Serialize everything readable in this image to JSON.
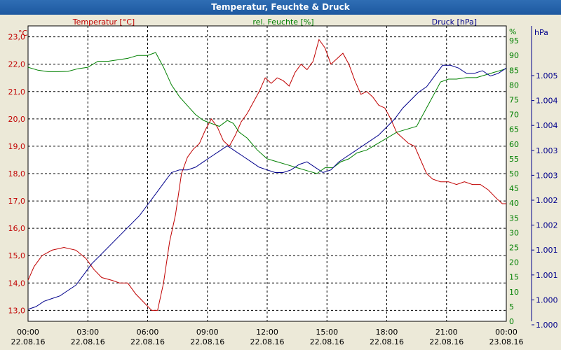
{
  "window": {
    "title": "Temperatur, Feuchte & Druck"
  },
  "chart_data": {
    "type": "line",
    "title": "Temperatur, Feuchte & Druck",
    "x_ticks": [
      {
        "time": "00:00",
        "date": "22.08.16"
      },
      {
        "time": "03:00",
        "date": "22.08.16"
      },
      {
        "time": "06:00",
        "date": "22.08.16"
      },
      {
        "time": "09:00",
        "date": "22.08.16"
      },
      {
        "time": "12:00",
        "date": "22.08.16"
      },
      {
        "time": "15:00",
        "date": "22.08.16"
      },
      {
        "time": "18:00",
        "date": "22.08.16"
      },
      {
        "time": "21:00",
        "date": "22.08.16"
      },
      {
        "time": "00:00",
        "date": "23.08.16"
      }
    ],
    "xlim_hours": [
      0,
      24
    ],
    "axes": {
      "temperature": {
        "unit": "°C",
        "label": "Temperatur [°C]",
        "ylim": [
          12.6,
          23.4
        ],
        "ticks": [
          "13,0",
          "14,0",
          "15,0",
          "16,0",
          "17,0",
          "18,0",
          "19,0",
          "20,0",
          "21,0",
          "22,0",
          "23,0"
        ],
        "tick_values": [
          13,
          14,
          15,
          16,
          17,
          18,
          19,
          20,
          21,
          22,
          23
        ],
        "color": "#c00000"
      },
      "humidity": {
        "unit": "%",
        "label": "rel. Feuchte [%]",
        "ylim": [
          0,
          100
        ],
        "ticks": [
          "0",
          "5",
          "10",
          "15",
          "20",
          "25",
          "30",
          "35",
          "40",
          "45",
          "50",
          "55",
          "60",
          "65",
          "70",
          "75",
          "80",
          "85",
          "90",
          "95"
        ],
        "tick_values": [
          0,
          5,
          10,
          15,
          20,
          25,
          30,
          35,
          40,
          45,
          50,
          55,
          60,
          65,
          70,
          75,
          80,
          85,
          90,
          95
        ],
        "color": "#008000"
      },
      "pressure": {
        "unit": "hPa",
        "label": "Druck [hPa]",
        "ticks": [
          "1.005",
          "1.004",
          "1.004",
          "1.003",
          "1.003",
          "1.002",
          "1.002",
          "1.001",
          "1.001",
          "1.000",
          "1.000"
        ],
        "color": "#00008b"
      }
    },
    "series": [
      {
        "name": "Temperatur [°C]",
        "axis": "temperature",
        "color": "#c00000",
        "points": [
          [
            0,
            14.1
          ],
          [
            0.3,
            14.6
          ],
          [
            0.7,
            15.0
          ],
          [
            1.2,
            15.2
          ],
          [
            1.8,
            15.3
          ],
          [
            2.4,
            15.2
          ],
          [
            2.9,
            14.9
          ],
          [
            3.3,
            14.5
          ],
          [
            3.7,
            14.2
          ],
          [
            4.2,
            14.1
          ],
          [
            4.6,
            14.0
          ],
          [
            5.0,
            14.0
          ],
          [
            5.4,
            13.6
          ],
          [
            5.8,
            13.3
          ],
          [
            6.2,
            13.0
          ],
          [
            6.5,
            13.0
          ],
          [
            6.8,
            14.0
          ],
          [
            7.1,
            15.5
          ],
          [
            7.4,
            16.5
          ],
          [
            7.7,
            18.0
          ],
          [
            8.0,
            18.6
          ],
          [
            8.3,
            18.9
          ],
          [
            8.6,
            19.1
          ],
          [
            8.9,
            19.6
          ],
          [
            9.2,
            20.0
          ],
          [
            9.5,
            19.7
          ],
          [
            9.8,
            19.2
          ],
          [
            10.1,
            19.0
          ],
          [
            10.4,
            19.4
          ],
          [
            10.7,
            19.9
          ],
          [
            11.0,
            20.2
          ],
          [
            11.3,
            20.6
          ],
          [
            11.6,
            21.0
          ],
          [
            11.9,
            21.5
          ],
          [
            12.2,
            21.3
          ],
          [
            12.5,
            21.5
          ],
          [
            12.8,
            21.4
          ],
          [
            13.1,
            21.2
          ],
          [
            13.4,
            21.7
          ],
          [
            13.7,
            22.0
          ],
          [
            14.0,
            21.8
          ],
          [
            14.3,
            22.1
          ],
          [
            14.6,
            22.9
          ],
          [
            14.9,
            22.6
          ],
          [
            15.2,
            22.0
          ],
          [
            15.5,
            22.2
          ],
          [
            15.8,
            22.4
          ],
          [
            16.1,
            22.0
          ],
          [
            16.4,
            21.4
          ],
          [
            16.7,
            20.9
          ],
          [
            17.0,
            21.0
          ],
          [
            17.3,
            20.8
          ],
          [
            17.6,
            20.5
          ],
          [
            17.9,
            20.4
          ],
          [
            18.2,
            20.0
          ],
          [
            18.5,
            19.5
          ],
          [
            18.8,
            19.3
          ],
          [
            19.1,
            19.1
          ],
          [
            19.4,
            19.0
          ],
          [
            19.7,
            18.5
          ],
          [
            20.0,
            18.0
          ],
          [
            20.3,
            17.8
          ],
          [
            20.7,
            17.7
          ],
          [
            21.1,
            17.7
          ],
          [
            21.5,
            17.6
          ],
          [
            21.9,
            17.7
          ],
          [
            22.3,
            17.6
          ],
          [
            22.7,
            17.6
          ],
          [
            23.1,
            17.4
          ],
          [
            23.5,
            17.1
          ],
          [
            23.8,
            16.9
          ],
          [
            24.0,
            16.9
          ]
        ]
      },
      {
        "name": "rel. Feuchte [%]",
        "axis": "humidity",
        "color": "#008000",
        "points": [
          [
            0,
            86
          ],
          [
            0.5,
            85
          ],
          [
            1.0,
            84.5
          ],
          [
            1.5,
            84.5
          ],
          [
            2.0,
            84.6
          ],
          [
            2.5,
            85.5
          ],
          [
            3.0,
            86
          ],
          [
            3.5,
            88
          ],
          [
            4.0,
            88
          ],
          [
            4.5,
            88.5
          ],
          [
            5.0,
            89
          ],
          [
            5.5,
            90
          ],
          [
            6.0,
            90
          ],
          [
            6.4,
            91
          ],
          [
            6.8,
            86
          ],
          [
            7.2,
            80
          ],
          [
            7.6,
            76
          ],
          [
            8.0,
            73
          ],
          [
            8.4,
            70
          ],
          [
            8.8,
            68
          ],
          [
            9.2,
            67
          ],
          [
            9.6,
            66
          ],
          [
            10.0,
            68
          ],
          [
            10.3,
            67
          ],
          [
            10.6,
            64
          ],
          [
            11.0,
            62
          ],
          [
            11.5,
            58
          ],
          [
            12.0,
            55
          ],
          [
            12.5,
            54
          ],
          [
            13.0,
            53
          ],
          [
            13.5,
            52
          ],
          [
            14.0,
            51
          ],
          [
            14.5,
            50
          ],
          [
            14.9,
            52
          ],
          [
            15.3,
            52
          ],
          [
            15.7,
            54
          ],
          [
            16.1,
            55
          ],
          [
            16.5,
            57
          ],
          [
            17.0,
            58
          ],
          [
            17.5,
            60
          ],
          [
            18.0,
            62
          ],
          [
            18.5,
            64
          ],
          [
            19.0,
            65
          ],
          [
            19.5,
            66
          ],
          [
            19.9,
            71
          ],
          [
            20.3,
            76
          ],
          [
            20.7,
            81
          ],
          [
            21.1,
            82
          ],
          [
            21.5,
            82
          ],
          [
            22.0,
            82.5
          ],
          [
            22.5,
            82.5
          ],
          [
            23.0,
            83.5
          ],
          [
            23.5,
            84.5
          ],
          [
            24.0,
            85.5
          ]
        ]
      },
      {
        "name": "Druck [hPa]",
        "axis": "pressure",
        "color": "#00008b",
        "points": [
          [
            0,
            5
          ],
          [
            0.4,
            6
          ],
          [
            0.8,
            8
          ],
          [
            1.2,
            9
          ],
          [
            1.6,
            10
          ],
          [
            2.0,
            12
          ],
          [
            2.4,
            14
          ],
          [
            2.8,
            18
          ],
          [
            3.2,
            22
          ],
          [
            3.6,
            25
          ],
          [
            4.0,
            28
          ],
          [
            4.4,
            31
          ],
          [
            4.8,
            34
          ],
          [
            5.2,
            37
          ],
          [
            5.6,
            40
          ],
          [
            6.0,
            44
          ],
          [
            6.4,
            48
          ],
          [
            6.8,
            52
          ],
          [
            7.2,
            56
          ],
          [
            7.6,
            57
          ],
          [
            8.0,
            57
          ],
          [
            8.4,
            58
          ],
          [
            8.8,
            60
          ],
          [
            9.2,
            62
          ],
          [
            9.6,
            64
          ],
          [
            10.0,
            66
          ],
          [
            10.4,
            64
          ],
          [
            10.8,
            62
          ],
          [
            11.2,
            60
          ],
          [
            11.6,
            58
          ],
          [
            12.0,
            57
          ],
          [
            12.4,
            56
          ],
          [
            12.8,
            56
          ],
          [
            13.2,
            57
          ],
          [
            13.6,
            59
          ],
          [
            14.0,
            60
          ],
          [
            14.4,
            58
          ],
          [
            14.8,
            56
          ],
          [
            15.2,
            57
          ],
          [
            15.6,
            60
          ],
          [
            16.0,
            62
          ],
          [
            16.4,
            64
          ],
          [
            16.8,
            66
          ],
          [
            17.2,
            68
          ],
          [
            17.6,
            70
          ],
          [
            18.0,
            73
          ],
          [
            18.4,
            76
          ],
          [
            18.8,
            80
          ],
          [
            19.2,
            83
          ],
          [
            19.6,
            86
          ],
          [
            20.0,
            88
          ],
          [
            20.4,
            92
          ],
          [
            20.8,
            96
          ],
          [
            21.2,
            96
          ],
          [
            21.6,
            95
          ],
          [
            22.0,
            93
          ],
          [
            22.4,
            93
          ],
          [
            22.8,
            94
          ],
          [
            23.2,
            92
          ],
          [
            23.6,
            93
          ],
          [
            24.0,
            95
          ]
        ]
      }
    ]
  }
}
